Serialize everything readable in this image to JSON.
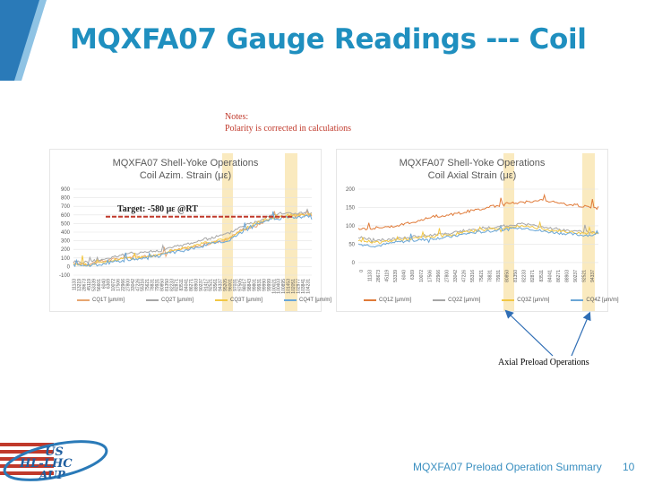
{
  "slide": {
    "title": "MQXFA07 Gauge Readings --- Coil",
    "notes_line1": "Notes:",
    "notes_line2": "Polarity is corrected in calculations",
    "axial_preload_label": "Axial Preload Operations",
    "footer": "MQXFA07 Preload Operation Summary",
    "page_number": "10",
    "logo_text_line1": "US",
    "logo_text_line2": "HL-LHC",
    "logo_text_line3": "AUP",
    "colors": {
      "title": "#1f8fbf",
      "notes": "#c0392b",
      "highlight": "#f5d98a",
      "target_line": "#c0392b"
    }
  },
  "chart_data": [
    {
      "type": "line",
      "title_line1": "MQXFA07 Shell-Yoke Operations",
      "title_line2": "Coil Azim. Strain (με)",
      "ylim": [
        -100,
        900
      ],
      "y_ticks": [
        "900",
        "800",
        "700",
        "600",
        "500",
        "400",
        "300",
        "200",
        "100",
        "0",
        "-100"
      ],
      "x_ticks": [
        "11133",
        "13219",
        "28673",
        "45119",
        "53339",
        "56601",
        "6040",
        "6369",
        "10072",
        "17506",
        "22966",
        "27800",
        "33042",
        "47226",
        "55316",
        "75621",
        "78831",
        "79931",
        "80850",
        "81350",
        "82233",
        "82871",
        "83511",
        "84041",
        "86271",
        "88903",
        "90237",
        "91417",
        "92521",
        "93561",
        "94337",
        "95205",
        "96001",
        "97031",
        "97505",
        "98017",
        "98843",
        "99801",
        "99931",
        "99990",
        "99999",
        "100021",
        "100403",
        "100895",
        "101453",
        "102051",
        "102977",
        "103841",
        "104231"
      ],
      "target_label": "Target: -580 με @RT",
      "target_value": 580,
      "highlight_label": "",
      "series": [
        {
          "name": "CQ1T [µm/m]",
          "color": "#e7a671"
        },
        {
          "name": "CQ2T [µm/m]",
          "color": "#a6a6a6"
        },
        {
          "name": "CQ3T [µm/m]",
          "color": "#f2c744"
        },
        {
          "name": "CQ4T [µm/m]",
          "color": "#6aa6d6"
        }
      ]
    },
    {
      "type": "line",
      "title_line1": "MQXFA07 Shell-Yoke Operations",
      "title_line2": "Coil Axial Strain (με)",
      "ylim": [
        -10,
        200
      ],
      "y_ticks": [
        "200",
        "150",
        "100",
        "50",
        "0"
      ],
      "x_ticks": [
        "0",
        "11133",
        "28673",
        "45119",
        "53339",
        "6040",
        "6369",
        "10072",
        "17506",
        "22966",
        "27800",
        "33042",
        "47226",
        "55316",
        "75621",
        "78831",
        "79931",
        "80850",
        "81350",
        "82233",
        "82871",
        "83511",
        "84041",
        "86271",
        "88903",
        "90237",
        "92521",
        "94337"
      ],
      "series": [
        {
          "name": "CQ1Z [µm/m]",
          "color": "#e07b39"
        },
        {
          "name": "CQ2Z [µm/m]",
          "color": "#a6a6a6"
        },
        {
          "name": "CQ3Z [µm/m]",
          "color": "#f2c744"
        },
        {
          "name": "CQ4Z [µm/m]",
          "color": "#6aa6d6"
        }
      ]
    }
  ]
}
